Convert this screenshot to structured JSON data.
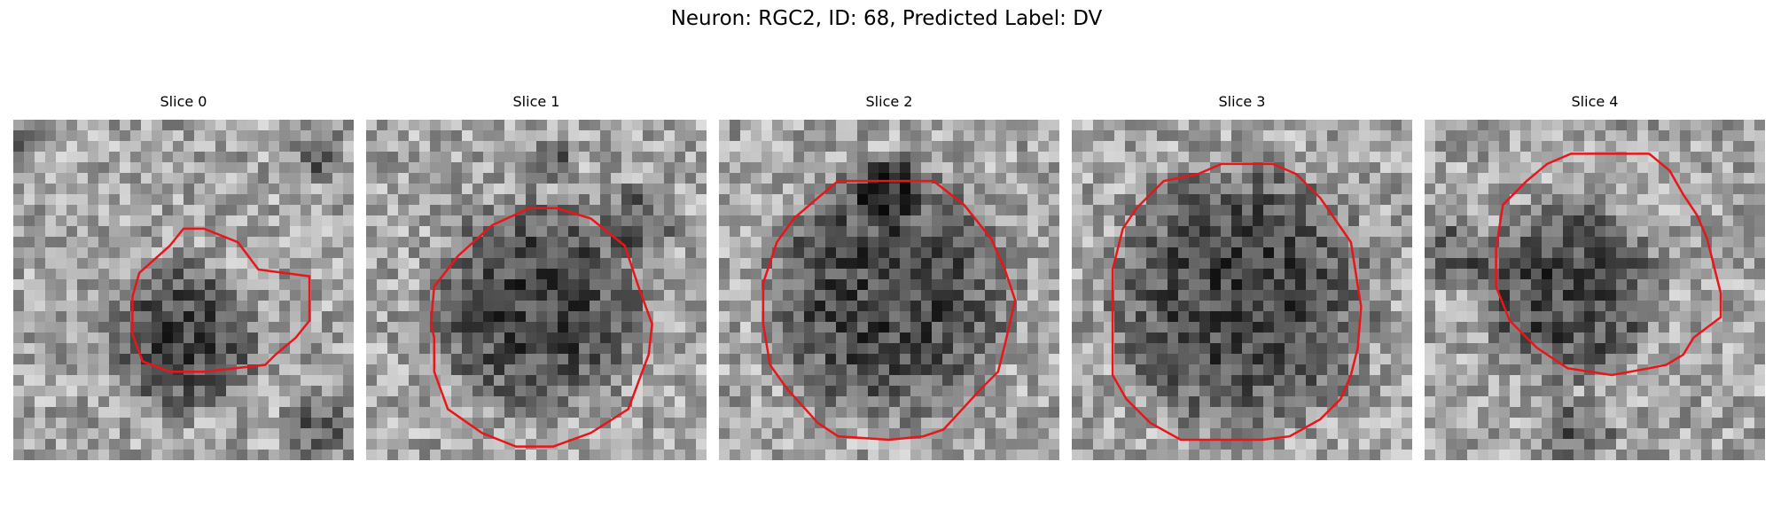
{
  "figure": {
    "title": "Neuron: RGC2, ID: 68, Predicted Label: DV"
  },
  "contour_color": "#e8161b",
  "panels": [
    {
      "title": "Slice 0",
      "texture_seed": 11,
      "dark_blob": [
        0.5,
        0.64,
        0.26
      ],
      "extra_dark": [
        [
          0.02,
          0.05,
          0.06
        ],
        [
          0.9,
          0.1,
          0.08
        ],
        [
          0.9,
          0.9,
          0.12
        ]
      ],
      "contour": [
        [
          0.5,
          0.32
        ],
        [
          0.56,
          0.32
        ],
        [
          0.66,
          0.36
        ],
        [
          0.72,
          0.44
        ],
        [
          0.87,
          0.46
        ],
        [
          0.87,
          0.59
        ],
        [
          0.83,
          0.64
        ],
        [
          0.77,
          0.69
        ],
        [
          0.74,
          0.72
        ],
        [
          0.56,
          0.74
        ],
        [
          0.5,
          0.74
        ],
        [
          0.46,
          0.74
        ],
        [
          0.38,
          0.71
        ],
        [
          0.35,
          0.63
        ],
        [
          0.35,
          0.52
        ],
        [
          0.37,
          0.45
        ],
        [
          0.46,
          0.37
        ]
      ]
    },
    {
      "title": "Slice 1",
      "texture_seed": 23,
      "dark_blob": [
        0.5,
        0.55,
        0.36
      ],
      "extra_dark": [
        [
          0.55,
          0.12,
          0.08
        ],
        [
          0.8,
          0.3,
          0.12
        ]
      ],
      "contour": [
        [
          0.48,
          0.26
        ],
        [
          0.56,
          0.26
        ],
        [
          0.66,
          0.29
        ],
        [
          0.76,
          0.37
        ],
        [
          0.8,
          0.49
        ],
        [
          0.84,
          0.6
        ],
        [
          0.83,
          0.69
        ],
        [
          0.77,
          0.85
        ],
        [
          0.66,
          0.92
        ],
        [
          0.55,
          0.96
        ],
        [
          0.44,
          0.96
        ],
        [
          0.34,
          0.92
        ],
        [
          0.24,
          0.85
        ],
        [
          0.2,
          0.74
        ],
        [
          0.2,
          0.64
        ],
        [
          0.19,
          0.6
        ],
        [
          0.2,
          0.49
        ],
        [
          0.27,
          0.4
        ],
        [
          0.37,
          0.31
        ]
      ]
    },
    {
      "title": "Slice 2",
      "texture_seed": 37,
      "dark_blob": [
        0.5,
        0.52,
        0.42
      ],
      "extra_dark": [
        [
          0.5,
          0.2,
          0.12
        ]
      ],
      "contour": [
        [
          0.35,
          0.18
        ],
        [
          0.63,
          0.18
        ],
        [
          0.72,
          0.25
        ],
        [
          0.8,
          0.35
        ],
        [
          0.84,
          0.44
        ],
        [
          0.87,
          0.53
        ],
        [
          0.84,
          0.66
        ],
        [
          0.82,
          0.74
        ],
        [
          0.77,
          0.79
        ],
        [
          0.66,
          0.91
        ],
        [
          0.6,
          0.93
        ],
        [
          0.5,
          0.94
        ],
        [
          0.35,
          0.93
        ],
        [
          0.29,
          0.89
        ],
        [
          0.2,
          0.79
        ],
        [
          0.15,
          0.72
        ],
        [
          0.13,
          0.6
        ],
        [
          0.13,
          0.48
        ],
        [
          0.17,
          0.36
        ],
        [
          0.22,
          0.29
        ],
        [
          0.29,
          0.23
        ]
      ]
    },
    {
      "title": "Slice 3",
      "texture_seed": 51,
      "dark_blob": [
        0.5,
        0.52,
        0.44
      ],
      "extra_dark": [],
      "contour": [
        [
          0.44,
          0.13
        ],
        [
          0.59,
          0.13
        ],
        [
          0.66,
          0.16
        ],
        [
          0.73,
          0.23
        ],
        [
          0.82,
          0.36
        ],
        [
          0.85,
          0.55
        ],
        [
          0.84,
          0.67
        ],
        [
          0.82,
          0.75
        ],
        [
          0.79,
          0.82
        ],
        [
          0.73,
          0.88
        ],
        [
          0.64,
          0.93
        ],
        [
          0.56,
          0.94
        ],
        [
          0.32,
          0.94
        ],
        [
          0.23,
          0.89
        ],
        [
          0.16,
          0.82
        ],
        [
          0.12,
          0.75
        ],
        [
          0.12,
          0.44
        ],
        [
          0.15,
          0.32
        ],
        [
          0.19,
          0.26
        ],
        [
          0.27,
          0.18
        ],
        [
          0.37,
          0.16
        ]
      ]
    },
    {
      "title": "Slice 4",
      "texture_seed": 67,
      "dark_blob": [
        0.42,
        0.5,
        0.3
      ],
      "extra_dark": [
        [
          0.45,
          0.92,
          0.12
        ],
        [
          0.1,
          0.4,
          0.12
        ]
      ],
      "contour": [
        [
          0.43,
          0.1
        ],
        [
          0.66,
          0.1
        ],
        [
          0.72,
          0.15
        ],
        [
          0.76,
          0.22
        ],
        [
          0.8,
          0.28
        ],
        [
          0.83,
          0.35
        ],
        [
          0.87,
          0.51
        ],
        [
          0.87,
          0.58
        ],
        [
          0.79,
          0.64
        ],
        [
          0.76,
          0.69
        ],
        [
          0.71,
          0.72
        ],
        [
          0.66,
          0.73
        ],
        [
          0.55,
          0.75
        ],
        [
          0.42,
          0.73
        ],
        [
          0.33,
          0.67
        ],
        [
          0.25,
          0.59
        ],
        [
          0.21,
          0.49
        ],
        [
          0.21,
          0.38
        ],
        [
          0.23,
          0.25
        ],
        [
          0.3,
          0.18
        ],
        [
          0.36,
          0.13
        ]
      ]
    }
  ]
}
